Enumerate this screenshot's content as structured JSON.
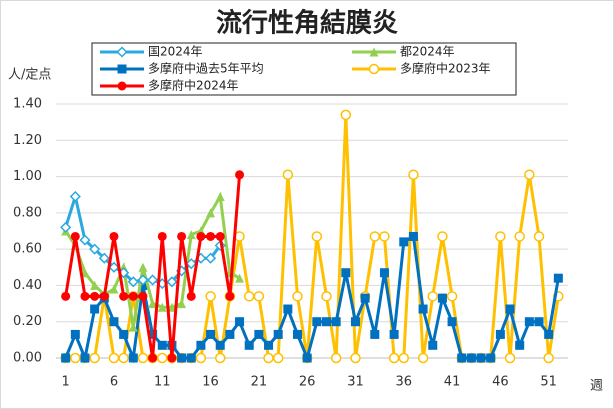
{
  "chart_data": {
    "type": "line",
    "title": "流行性角結膜炎",
    "y_label": "人/定点",
    "x_label": "週",
    "xlim": [
      0,
      53
    ],
    "xticks": [
      1,
      6,
      11,
      16,
      21,
      26,
      31,
      36,
      41,
      46,
      51
    ],
    "ylim": [
      0,
      1.4
    ],
    "yticks": [
      {
        "value": 0,
        "label": "0.00"
      },
      {
        "value": 0.2,
        "label": "0.20"
      },
      {
        "value": 0.4,
        "label": "0.40"
      },
      {
        "value": 0.6,
        "label": "0.60"
      },
      {
        "value": 0.8,
        "label": "0.80"
      },
      {
        "value": 1.0,
        "label": "1.00"
      },
      {
        "value": 1.2,
        "label": "1.20"
      },
      {
        "value": 1.4,
        "label": "1.40"
      }
    ],
    "grid": true,
    "series": [
      {
        "name": "国2024年",
        "color": "#2aa9e0",
        "marker": "diamond-open",
        "values": [
          0.72,
          0.89,
          0.65,
          0.6,
          0.55,
          0.5,
          0.47,
          0.42,
          0.43,
          0.43,
          0.41,
          0.42,
          0.48,
          0.52,
          0.55,
          0.55,
          0.62
        ]
      },
      {
        "name": "都2024年",
        "color": "#92d050",
        "marker": "triangle",
        "values": [
          0.7,
          0.62,
          0.47,
          0.4,
          0.35,
          0.38,
          0.5,
          0.17,
          0.5,
          0.3,
          0.28,
          0.28,
          0.3,
          0.68,
          0.7,
          0.8,
          0.89,
          0.47,
          0.44
        ]
      },
      {
        "name": "多摩府中過去5年平均",
        "color": "#0070c0",
        "marker": "square",
        "values": [
          0,
          0.13,
          0,
          0.27,
          0.33,
          0.2,
          0.13,
          0,
          0.4,
          0.13,
          0.07,
          0.07,
          0,
          0,
          0.07,
          0.13,
          0.07,
          0.13,
          0.2,
          0.07,
          0.13,
          0.07,
          0.13,
          0.27,
          0.13,
          0,
          0.2,
          0.2,
          0.2,
          0.47,
          0.2,
          0.33,
          0.13,
          0.47,
          0.13,
          0.64,
          0.67,
          0.27,
          0.07,
          0.33,
          0.2,
          0,
          0,
          0,
          0,
          0.13,
          0.27,
          0.07,
          0.2,
          0.2,
          0.13,
          0.44
        ]
      },
      {
        "name": "多摩府中2023年",
        "color": "#ffc000",
        "marker": "circle-open",
        "values": [
          0,
          0,
          0,
          0,
          0.34,
          0,
          0,
          0.34,
          0,
          0,
          0,
          0,
          0,
          0,
          0,
          0.34,
          0,
          0.34,
          0.67,
          0.34,
          0.34,
          0,
          0,
          1.01,
          0.34,
          0,
          0.67,
          0.34,
          0,
          1.34,
          0,
          0.34,
          0.67,
          0.67,
          0,
          0,
          1.01,
          0,
          0.34,
          0.67,
          0.34,
          0,
          0,
          0,
          0,
          0.67,
          0,
          0.67,
          1.01,
          0.67,
          0,
          0.34
        ]
      },
      {
        "name": "多摩府中2024年",
        "color": "#ff0000",
        "marker": "circle",
        "values": [
          0.34,
          0.67,
          0.34,
          0.34,
          0.34,
          0.67,
          0.34,
          0.34,
          0.34,
          0,
          0.67,
          0,
          0.67,
          0.34,
          0.67,
          0.67,
          0.67,
          0.34,
          1.01
        ]
      }
    ]
  }
}
